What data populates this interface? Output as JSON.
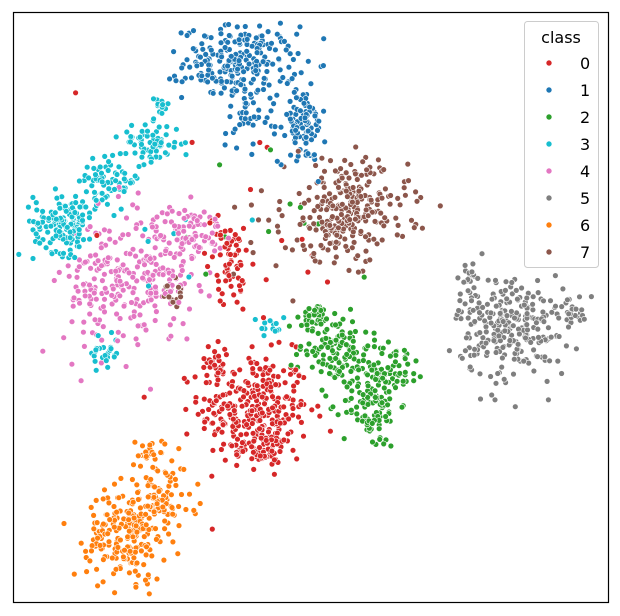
{
  "chart_data": {
    "type": "scatter",
    "title": "",
    "xlabel": "",
    "ylabel": "",
    "grid": false,
    "axis_ticks": false,
    "xlim": [
      0,
      100
    ],
    "ylim": [
      0,
      100
    ],
    "legend": {
      "title": "class",
      "placement": "top-right"
    },
    "series": [
      {
        "name": "0",
        "color": "#d62728",
        "clusters": [
          {
            "cx": 40.5,
            "cy": 32.5,
            "sx": 4.6,
            "sy": 4.8,
            "n": 300
          },
          {
            "cx": 34.0,
            "cy": 41.0,
            "sx": 1.5,
            "sy": 1.6,
            "n": 25
          },
          {
            "cx": 36.5,
            "cy": 57.0,
            "sx": 1.1,
            "sy": 3.3,
            "n": 55
          },
          {
            "cx": 42.0,
            "cy": 26.0,
            "sx": 2.0,
            "sy": 1.5,
            "n": 50
          },
          {
            "cx": 34.0,
            "cy": 62.0,
            "sx": 1.5,
            "sy": 2.0,
            "n": 8
          }
        ]
      },
      {
        "name": "1",
        "color": "#1f77b4",
        "clusters": [
          {
            "cx": 38.0,
            "cy": 91.5,
            "sx": 4.7,
            "sy": 3.1,
            "n": 240
          },
          {
            "cx": 48.5,
            "cy": 81.0,
            "sx": 2.0,
            "sy": 3.2,
            "n": 90
          },
          {
            "cx": 39.0,
            "cy": 82.0,
            "sx": 2.2,
            "sy": 2.0,
            "n": 30
          }
        ]
      },
      {
        "name": "2",
        "color": "#2ca02c",
        "clusters": [
          {
            "cx": 54.0,
            "cy": 43.5,
            "sx": 3.0,
            "sy": 3.4,
            "n": 120
          },
          {
            "cx": 60.0,
            "cy": 34.0,
            "sx": 2.4,
            "sy": 4.0,
            "n": 130
          },
          {
            "cx": 64.5,
            "cy": 40.0,
            "sx": 2.4,
            "sy": 2.0,
            "n": 45
          },
          {
            "cx": 51.0,
            "cy": 48.5,
            "sx": 1.2,
            "sy": 1.0,
            "n": 25
          }
        ]
      },
      {
        "name": "3",
        "color": "#17becf",
        "clusters": [
          {
            "cx": 8.5,
            "cy": 64.5,
            "sx": 2.6,
            "sy": 2.6,
            "n": 150
          },
          {
            "cx": 16.0,
            "cy": 71.5,
            "sx": 2.6,
            "sy": 1.8,
            "n": 70
          },
          {
            "cx": 23.0,
            "cy": 78.0,
            "sx": 2.6,
            "sy": 1.6,
            "n": 70
          },
          {
            "cx": 24.5,
            "cy": 84.0,
            "sx": 0.8,
            "sy": 0.9,
            "n": 15
          },
          {
            "cx": 15.5,
            "cy": 42.5,
            "sx": 1.2,
            "sy": 1.8,
            "n": 25
          },
          {
            "cx": 43.0,
            "cy": 47.0,
            "sx": 1.5,
            "sy": 1.0,
            "n": 12
          }
        ]
      },
      {
        "name": "4",
        "color": "#e377c2",
        "clusters": [
          {
            "cx": 15.5,
            "cy": 54.0,
            "sx": 3.6,
            "sy": 6.2,
            "n": 150
          },
          {
            "cx": 24.0,
            "cy": 56.0,
            "sx": 3.5,
            "sy": 4.6,
            "n": 130
          },
          {
            "cx": 29.5,
            "cy": 63.0,
            "sx": 3.0,
            "sy": 2.0,
            "n": 80
          }
        ]
      },
      {
        "name": "5",
        "color": "#7f7f7f",
        "clusters": [
          {
            "cx": 84.0,
            "cy": 46.5,
            "sx": 4.6,
            "sy": 4.6,
            "n": 260
          },
          {
            "cx": 76.5,
            "cy": 53.0,
            "sx": 1.2,
            "sy": 2.8,
            "n": 30
          },
          {
            "cx": 94.0,
            "cy": 49.0,
            "sx": 1.2,
            "sy": 1.0,
            "n": 20
          }
        ]
      },
      {
        "name": "6",
        "color": "#ff7f0e",
        "clusters": [
          {
            "cx": 19.0,
            "cy": 11.5,
            "sx": 3.3,
            "sy": 3.9,
            "n": 200
          },
          {
            "cx": 24.5,
            "cy": 17.0,
            "sx": 3.0,
            "sy": 2.5,
            "n": 80
          },
          {
            "cx": 23.5,
            "cy": 25.0,
            "sx": 1.8,
            "sy": 1.8,
            "n": 30
          }
        ]
      },
      {
        "name": "7",
        "color": "#8c564b",
        "clusters": [
          {
            "cx": 56.0,
            "cy": 66.5,
            "sx": 5.2,
            "sy": 4.2,
            "n": 280
          },
          {
            "cx": 27.0,
            "cy": 52.5,
            "sx": 1.3,
            "sy": 1.5,
            "n": 18
          }
        ]
      }
    ]
  }
}
